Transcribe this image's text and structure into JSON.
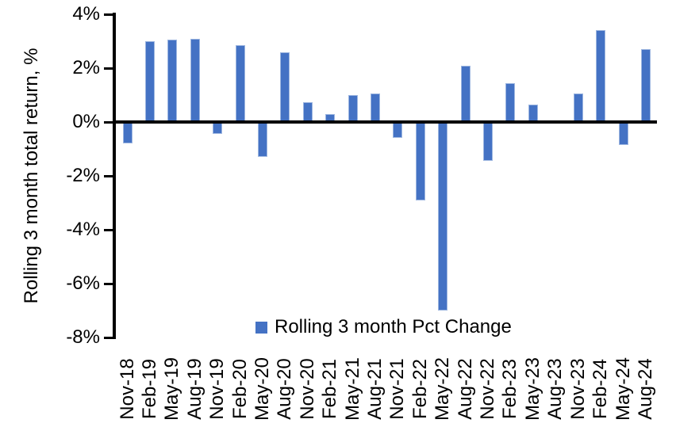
{
  "chart_data": {
    "type": "bar",
    "title": "",
    "xlabel": "",
    "ylabel": "Rolling 3 month total return, %",
    "series_name": "Rolling 3 month Pct Change",
    "categories": [
      "Nov-18",
      "Feb-19",
      "May-19",
      "Aug-19",
      "Nov-19",
      "Feb-20",
      "May-20",
      "Aug-20",
      "Nov-20",
      "Feb-21",
      "May-21",
      "Aug-21",
      "Nov-21",
      "Feb-22",
      "May-22",
      "Aug-22",
      "Nov-22",
      "Feb-23",
      "May-23",
      "Aug-23",
      "Nov-23",
      "Feb-24",
      "May-24",
      "Aug-24"
    ],
    "values": [
      -0.8,
      3.0,
      3.05,
      3.1,
      -0.45,
      2.85,
      -1.3,
      2.6,
      0.75,
      0.3,
      1.0,
      1.05,
      -0.6,
      -2.9,
      -7.0,
      2.1,
      -1.45,
      1.45,
      0.65,
      0.0,
      1.05,
      3.4,
      -0.85,
      2.7
    ],
    "ylim": [
      -8,
      4
    ],
    "ytick_step": 2,
    "ytick_labels": [
      "4%",
      "2%",
      "0%",
      "-2%",
      "-4%",
      "-6%",
      "-8%"
    ],
    "bar_color": "#4472C4",
    "axis_color": "#000000",
    "grid": false,
    "legend_position": "bottom-center"
  }
}
